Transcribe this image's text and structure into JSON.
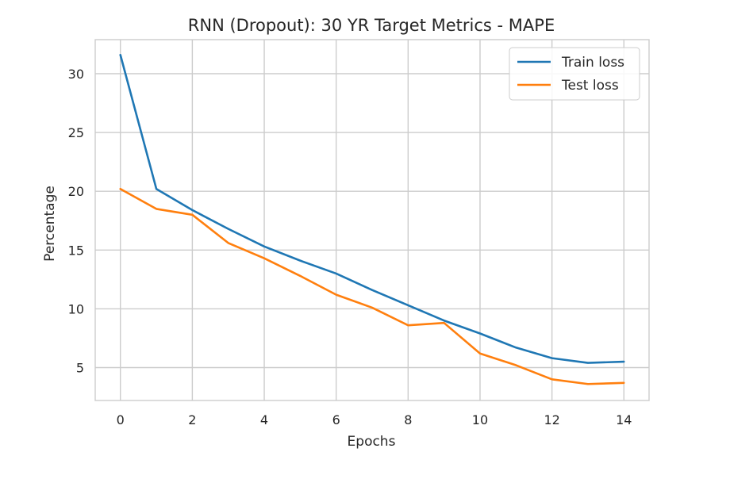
{
  "chart_data": {
    "type": "line",
    "title": "RNN (Dropout): 30 YR Target Metrics - MAPE",
    "xlabel": "Epochs",
    "ylabel": "Percentage",
    "x": [
      0,
      1,
      2,
      3,
      4,
      5,
      6,
      7,
      8,
      9,
      10,
      11,
      12,
      13,
      14
    ],
    "xlim": [
      -0.7,
      14.7
    ],
    "ylim": [
      2.2,
      32.9
    ],
    "xticks": [
      0,
      2,
      4,
      6,
      8,
      10,
      12,
      14
    ],
    "yticks": [
      5,
      10,
      15,
      20,
      25,
      30
    ],
    "grid": true,
    "legend_position": "top-right",
    "series": [
      {
        "name": "Train loss",
        "color": "#1f77b4",
        "values": [
          31.6,
          20.2,
          18.4,
          16.8,
          15.3,
          14.1,
          13.0,
          11.6,
          10.3,
          9.0,
          7.9,
          6.7,
          5.8,
          5.4,
          5.5
        ]
      },
      {
        "name": "Test loss",
        "color": "#ff7f0e",
        "values": [
          20.2,
          18.5,
          18.0,
          15.6,
          14.3,
          12.8,
          11.2,
          10.1,
          8.6,
          8.8,
          6.2,
          5.2,
          4.0,
          3.6,
          3.7
        ]
      }
    ]
  }
}
